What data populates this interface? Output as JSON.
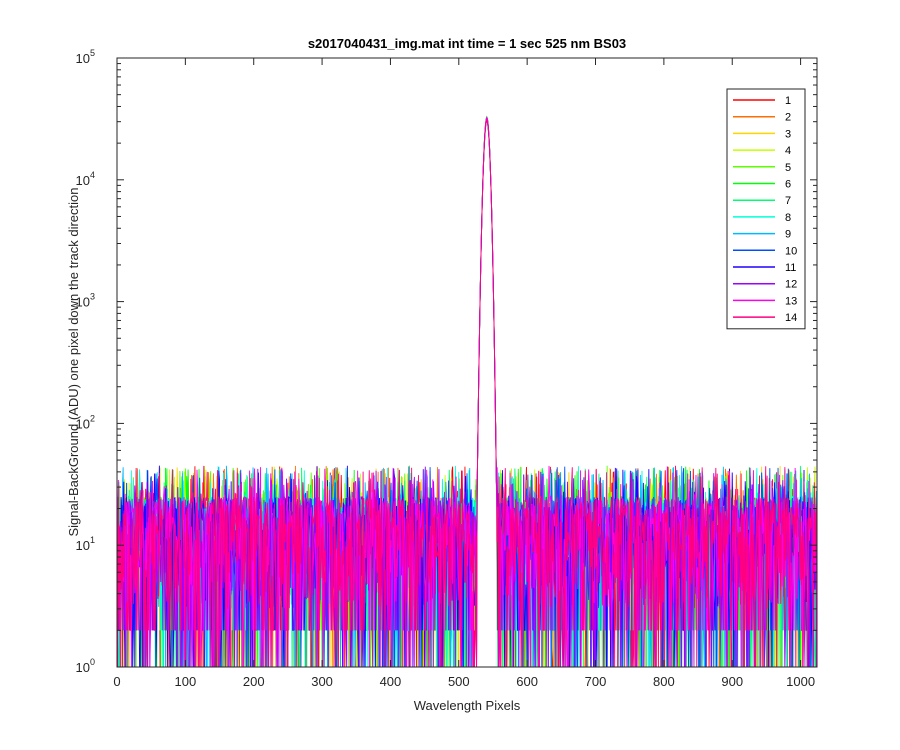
{
  "chart_data": {
    "type": "line",
    "title": "s2017040431_img.mat int time = 1 sec  525 nm BS03",
    "xlabel": "Wavelength Pixels",
    "ylabel": "Signal-BackGround (ADU) one pixel down the track direction",
    "xlim": [
      0,
      1024
    ],
    "ylim": [
      1,
      100000
    ],
    "yscale": "log",
    "xticks": [
      "0",
      "100",
      "200",
      "300",
      "400",
      "500",
      "600",
      "700",
      "800",
      "900",
      "1000"
    ],
    "yticks": [
      {
        "base": "10",
        "exp": "0"
      },
      {
        "base": "10",
        "exp": "1"
      },
      {
        "base": "10",
        "exp": "2"
      },
      {
        "base": "10",
        "exp": "3"
      },
      {
        "base": "10",
        "exp": "4"
      },
      {
        "base": "10",
        "exp": "5"
      }
    ],
    "grid": false,
    "legend_position": "top-right",
    "peak": {
      "x": 541,
      "y": 33000,
      "width": 6
    },
    "noise": {
      "typical": 10,
      "max": 45,
      "min": 1
    },
    "series": [
      {
        "name": "1",
        "color": "#ff0000"
      },
      {
        "name": "2",
        "color": "#ff6e00"
      },
      {
        "name": "3",
        "color": "#ffd500"
      },
      {
        "name": "4",
        "color": "#c4ff00"
      },
      {
        "name": "5",
        "color": "#5dff00"
      },
      {
        "name": "6",
        "color": "#00ff09"
      },
      {
        "name": "7",
        "color": "#00ff70"
      },
      {
        "name": "8",
        "color": "#00ffdb"
      },
      {
        "name": "9",
        "color": "#00b9ff"
      },
      {
        "name": "10",
        "color": "#004dff"
      },
      {
        "name": "11",
        "color": "#2000ff"
      },
      {
        "name": "12",
        "color": "#a000ff"
      },
      {
        "name": "13",
        "color": "#ff00ee"
      },
      {
        "name": "14",
        "color": "#ff0080"
      }
    ]
  }
}
